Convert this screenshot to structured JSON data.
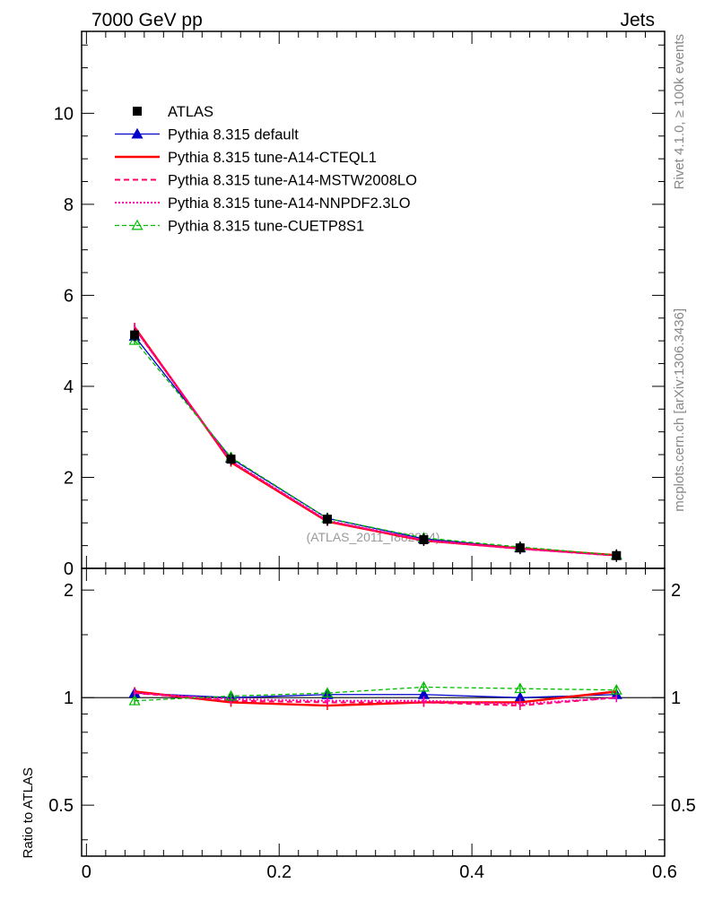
{
  "header": {
    "left": "7000 GeV pp",
    "right": "Jets"
  },
  "side_text": {
    "rivet": "Rivet 4.1.0, ≥ 100k events",
    "mcplots": "mcplots.cern.ch [arXiv:1306.3436]"
  },
  "watermark": "(ATLAS_2011_I882984)",
  "colors": {
    "atlas": "#000000",
    "default": "#0000cc",
    "cteql1": "#ff0000",
    "mstw": "#ff0066",
    "nnpdf": "#ff00aa",
    "cuetp8s1": "#00bb00"
  },
  "chart_data": [
    {
      "type": "line",
      "panel": "main",
      "title": "",
      "xlabel": "",
      "ylabel": "",
      "xlim": [
        -0.005,
        0.6
      ],
      "ylim": [
        0,
        11.8
      ],
      "grid": false,
      "legend_position": "top-left",
      "y_ticks": [
        "0",
        "2",
        "4",
        "6",
        "8",
        "10"
      ],
      "x": [
        0.05,
        0.15,
        0.25,
        0.35,
        0.45,
        0.55
      ],
      "series": [
        {
          "name": "ATLAS",
          "style": "data",
          "values": [
            5.13,
            2.4,
            1.08,
            0.63,
            0.45,
            0.28
          ]
        },
        {
          "name": "Pythia 8.315 default",
          "style": "blue-triangle",
          "values": [
            5.1,
            2.42,
            1.1,
            0.65,
            0.45,
            0.29
          ]
        },
        {
          "name": "Pythia 8.315 tune-A14-CTEQL1",
          "style": "red-solid",
          "values": [
            5.3,
            2.33,
            1.03,
            0.61,
            0.44,
            0.29
          ]
        },
        {
          "name": "Pythia 8.315 tune-A14-MSTW2008LO",
          "style": "pink-dashed",
          "values": [
            5.28,
            2.35,
            1.04,
            0.61,
            0.43,
            0.28
          ]
        },
        {
          "name": "Pythia 8.315 tune-A14-NNPDF2.3LO",
          "style": "magenta-dotted",
          "values": [
            5.27,
            2.36,
            1.05,
            0.62,
            0.43,
            0.28
          ]
        },
        {
          "name": "Pythia 8.315 tune-CUETP8S1",
          "style": "green-dashed-triangle",
          "values": [
            5.01,
            2.44,
            1.1,
            0.67,
            0.47,
            0.29
          ]
        }
      ]
    },
    {
      "type": "line",
      "panel": "ratio",
      "title": "",
      "xlabel": "",
      "ylabel": "Ratio to ATLAS",
      "xlim": [
        -0.005,
        0.6
      ],
      "ylim": [
        0.36,
        2.3
      ],
      "y_scale": "log",
      "y_ticks": [
        "0.5",
        "1",
        "2"
      ],
      "x_ticks": [
        "0",
        "0.2",
        "0.4",
        "0.6"
      ],
      "x": [
        0.05,
        0.15,
        0.25,
        0.35,
        0.45,
        0.55
      ],
      "series": [
        {
          "name": "Pythia 8.315 default",
          "values": [
            1.03,
            1.0,
            1.02,
            1.02,
            1.0,
            1.02
          ]
        },
        {
          "name": "Pythia 8.315 tune-A14-CTEQL1",
          "values": [
            1.04,
            0.97,
            0.95,
            0.97,
            0.97,
            1.04
          ]
        },
        {
          "name": "Pythia 8.315 tune-A14-MSTW2008LO",
          "values": [
            1.03,
            0.98,
            0.97,
            0.97,
            0.95,
            1.0
          ]
        },
        {
          "name": "Pythia 8.315 tune-A14-NNPDF2.3LO",
          "values": [
            1.03,
            0.99,
            0.98,
            0.98,
            0.96,
            1.0
          ]
        },
        {
          "name": "Pythia 8.315 tune-CUETP8S1",
          "values": [
            0.98,
            1.01,
            1.03,
            1.07,
            1.06,
            1.05
          ]
        }
      ]
    }
  ]
}
